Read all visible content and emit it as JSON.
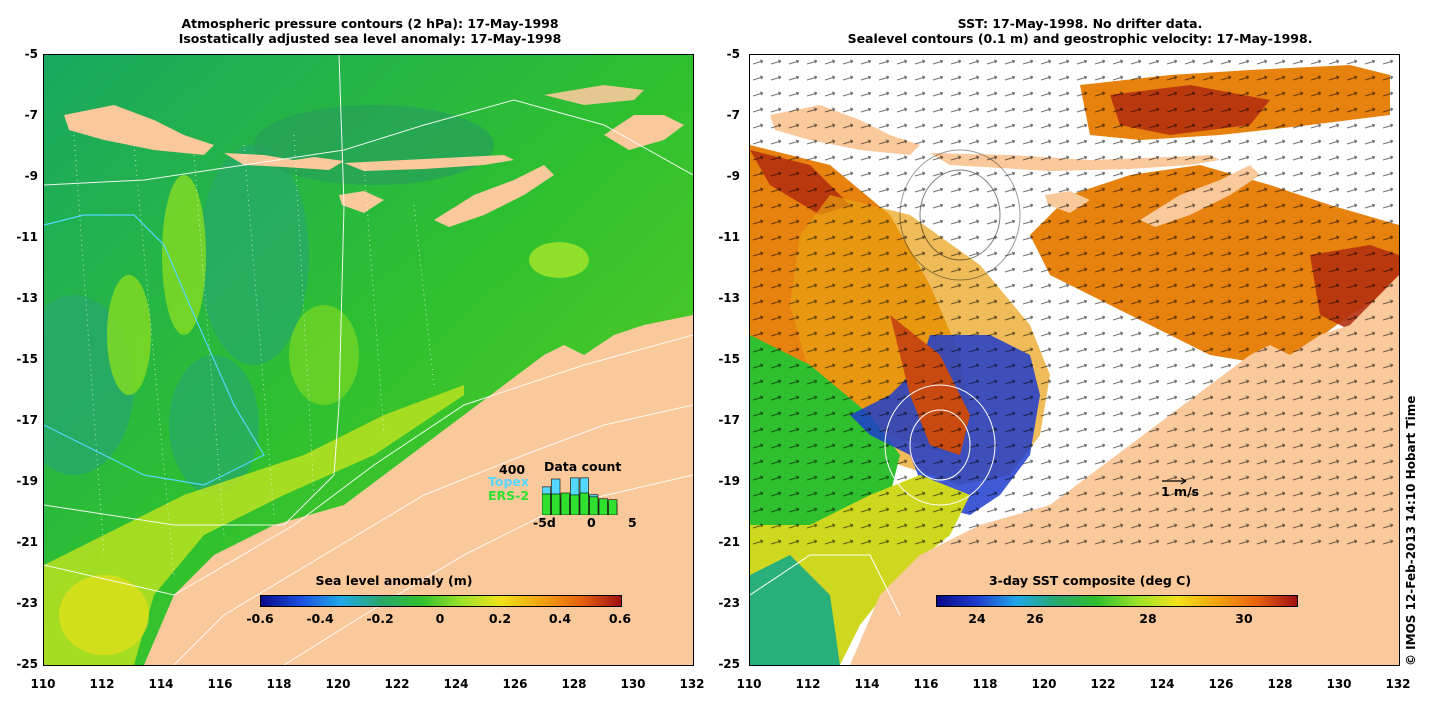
{
  "left": {
    "title_line1": "Atmospheric pressure contours (2 hPa): 17-May-1998",
    "title_line2": "Isostatically adjusted sea level anomaly: 17-May-1998",
    "colorbar_label": "Sea level anomaly (m)",
    "colorbar_ticks": [
      "-0.6",
      "-0.4",
      "-0.2",
      "0",
      "0.2",
      "0.4",
      "0.6"
    ],
    "datacount": {
      "title": "Data count",
      "max": "400",
      "series": [
        "Topex",
        "ERS-2"
      ],
      "x_ticks": [
        "-5d",
        "0",
        "5"
      ],
      "topex_values": [
        250,
        320,
        150,
        330,
        330,
        180,
        120,
        100
      ],
      "ers2_values": [
        220,
        220,
        230,
        210,
        230,
        190,
        170,
        160
      ]
    }
  },
  "right": {
    "title_line1": "SST: 17-May-1998. No drifter data.",
    "title_line2": "Sealevel contours (0.1 m) and geostrophic velocity: 17-May-1998.",
    "colorbar_label": "3-day SST composite (deg C)",
    "colorbar_ticks": [
      "24",
      "26",
      "28",
      "30"
    ],
    "scale_label": "1 m/s"
  },
  "axes": {
    "y_ticks": [
      "-5",
      "-7",
      "-9",
      "-11",
      "-13",
      "-15",
      "-17",
      "-19",
      "-21",
      "-23",
      "-25"
    ],
    "x_ticks": [
      "110",
      "112",
      "114",
      "116",
      "118",
      "120",
      "122",
      "124",
      "126",
      "128",
      "130",
      "132"
    ]
  },
  "copyright": "© IMOS 12-Feb-2013 14:10 Hobart Time",
  "colors": {
    "land": "#f9c89b",
    "sla_green": "#2fc02f",
    "sla_teal": "#27a86a",
    "sla_lime": "#9ae22a",
    "sst_orange": "#e8820f",
    "sst_red": "#b5300e",
    "sst_blue": "#1e3ccc"
  }
}
